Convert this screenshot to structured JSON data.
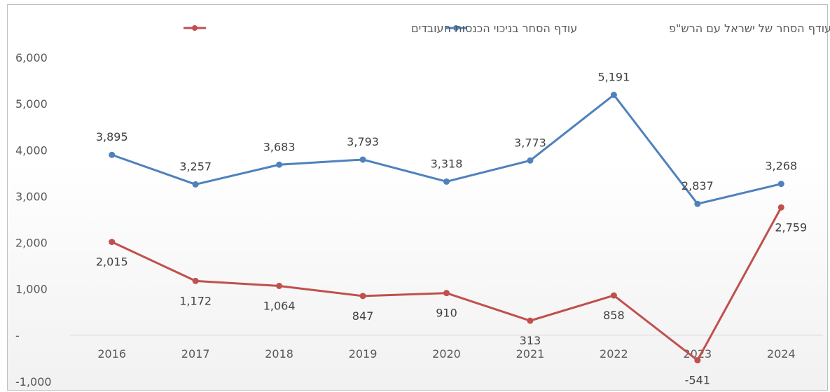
{
  "chart_data": {
    "type": "line",
    "title": "",
    "xlabel": "",
    "ylabel": "",
    "categories": [
      "2016",
      "2017",
      "2018",
      "2019",
      "2020",
      "2021",
      "2022",
      "2023",
      "2024"
    ],
    "y_ticks": [
      "6,000",
      "5,000",
      "4,000",
      "3,000",
      "2,000",
      "1,000",
      "-",
      "-1,000"
    ],
    "ylim": [
      -1000,
      6000
    ],
    "grid": false,
    "legend_position": "top",
    "series": [
      {
        "name": "עודף הסחר של ישראל עם הרש\"פ",
        "color": "#4f81bd",
        "values": [
          3895,
          3257,
          3683,
          3793,
          3318,
          3773,
          5191,
          2837,
          3268
        ],
        "labels": [
          "3,895",
          "3,257",
          "3,683",
          "3,793",
          "3,318",
          "3,773",
          "5,191",
          "2,837",
          "3,268"
        ]
      },
      {
        "name": "עודף הסחר בניכוי הכנסות העובדים",
        "color": "#c0504d",
        "values": [
          2015,
          1172,
          1064,
          847,
          910,
          313,
          858,
          -541,
          2759
        ],
        "labels": [
          "2,015",
          "1,172",
          "1,064",
          "847",
          "910",
          "313",
          "858",
          "-541",
          "2,759"
        ]
      }
    ]
  }
}
